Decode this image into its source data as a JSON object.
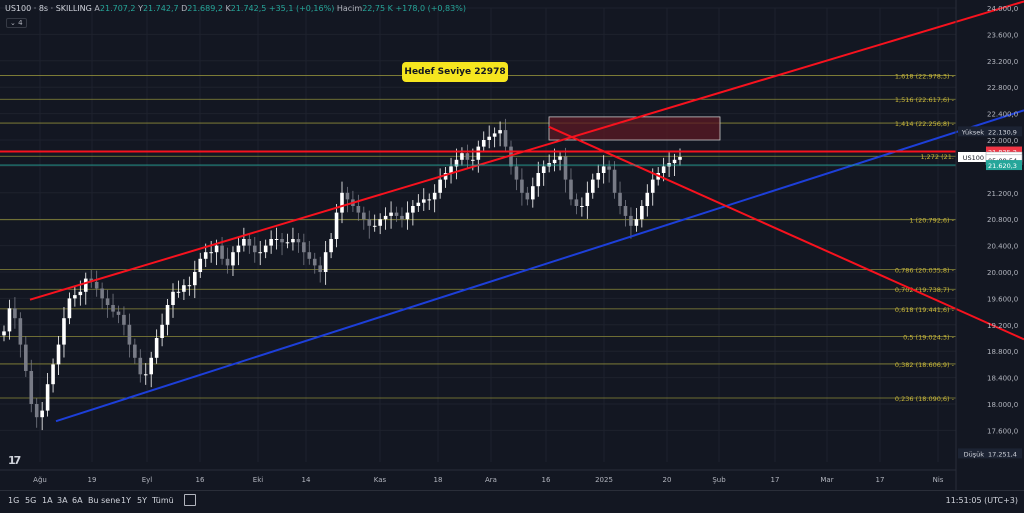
{
  "header": {
    "symbol": "US100 · 8s · SKILLING",
    "open_label": "A",
    "open": "21.707,2",
    "high_label": "Y",
    "high": "21.742,7",
    "low_label": "D",
    "low": "21.689,2",
    "close_label": "K",
    "close": "21.742,5",
    "change": "+35,1 (+0,16%)",
    "volume_label": "Hacim",
    "volume": "22,75 K",
    "volume_change": "+178,0 (+0,83%)",
    "collapse_count": "4"
  },
  "target_label": "Hedef Seviye 22978",
  "colors": {
    "background": "#131722",
    "channel_red": "#f7121e",
    "channel_blue": "#1d3fd9",
    "fib": "#8c8a3a",
    "up": "#ffffff",
    "down": "#787b86",
    "zone": "#5c1a24",
    "last_price": "#f23645",
    "green_price": "#26a69a"
  },
  "chart_data": {
    "type": "candlestick",
    "symbol": "US100",
    "timeframe": "8s",
    "ylim": [
      17251.4,
      24000
    ],
    "price_axis_ticks": [
      "24.000,0",
      "23.600,0",
      "23.200,0",
      "22.800,0",
      "22.400,0",
      "22.000,0",
      "21.200,0",
      "20.800,0",
      "20.400,0",
      "20.000,0",
      "19.600,0",
      "19.200,0",
      "18.800,0",
      "18.400,0",
      "18.000,0",
      "17.600,0"
    ],
    "time_axis_ticks": [
      "Ağu",
      "19",
      "Eyl",
      "16",
      "Eki",
      "14",
      "Kas",
      "18",
      "Ara",
      "16",
      "2025",
      "20",
      "Şub",
      "17",
      "Mar",
      "17",
      "Nis"
    ],
    "fibonacci_levels": [
      {
        "ratio": "1,618",
        "value": 22978.3,
        "label": "1,618 (22.978,3)"
      },
      {
        "ratio": "1,516",
        "value": 22617.6,
        "label": "1,516 (22.617,6)"
      },
      {
        "ratio": "1,414",
        "value": 22256.8,
        "label": "1,414 (22.256,8)"
      },
      {
        "ratio": "1,272",
        "value": 21754.0,
        "label": "1,272 (21."
      },
      {
        "ratio": "1",
        "value": 20792.6,
        "label": "1 (20.792,6)"
      },
      {
        "ratio": "0,786",
        "value": 20035.8,
        "label": "0,786 (20.035,8)"
      },
      {
        "ratio": "0,702",
        "value": 19738.7,
        "label": "0,702 (19.738,7)"
      },
      {
        "ratio": "0,618",
        "value": 19441.6,
        "label": "0,618 (19.441,6)"
      },
      {
        "ratio": "0,5",
        "value": 19024.3,
        "label": "0,5 (19.024,3)"
      },
      {
        "ratio": "0,382",
        "value": 18606.9,
        "label": "0,382 (18.606,9)"
      },
      {
        "ratio": "0,236",
        "value": 18090.6,
        "label": "0,236 (18.090,6)"
      }
    ],
    "price_labels": [
      {
        "text": "Yüksek",
        "value": "22.130,9",
        "price": 22130.9,
        "style": "navy"
      },
      {
        "text": "",
        "value": "21.825,2",
        "price": 21825.2,
        "style": "red"
      },
      {
        "text": "US100",
        "value": "21.742,5",
        "price": 21742.5,
        "style": "white"
      },
      {
        "text": "",
        "value": "05:08:54",
        "price": 21700,
        "style": "white-sub"
      },
      {
        "text": "",
        "value": "21.620,3",
        "price": 21620.3,
        "style": "green"
      },
      {
        "text": "Düşük",
        "value": "17.251,4",
        "price": 17251.4,
        "style": "navy"
      }
    ],
    "trendlines": [
      {
        "name": "channel-top",
        "color": "red",
        "from": [
          "Ağu",
          19580
        ],
        "to": [
          "Nis+",
          24000
        ]
      },
      {
        "name": "channel-bottom",
        "color": "blue",
        "from": [
          "Ağu",
          17740
        ],
        "to": [
          "Nis+",
          22450
        ]
      },
      {
        "name": "descending",
        "color": "red",
        "from": [
          "Ara 16",
          22200
        ],
        "to": [
          "Nis+",
          19000
        ]
      },
      {
        "name": "resistance",
        "color": "red",
        "value": 21825.2
      }
    ],
    "zone": {
      "from": "Ara 16",
      "to": "2025",
      "low": 22000,
      "high": 22350
    },
    "closes": [
      19100,
      19450,
      19300,
      18900,
      18500,
      18000,
      17800,
      17900,
      18300,
      18600,
      18900,
      19300,
      19600,
      19650,
      19700,
      19900,
      19850,
      19750,
      19600,
      19500,
      19400,
      19350,
      19200,
      18900,
      18700,
      18450,
      18450,
      18700,
      19000,
      19200,
      19500,
      19700,
      19700,
      19800,
      19800,
      20000,
      20200,
      20300,
      20300,
      20400,
      20200,
      20100,
      20300,
      20400,
      20500,
      20400,
      20300,
      20300,
      20400,
      20500,
      20500,
      20450,
      20450,
      20500,
      20450,
      20300,
      20200,
      20100,
      20000,
      20300,
      20500,
      20900,
      21200,
      21100,
      21000,
      20900,
      20800,
      20700,
      20700,
      20800,
      20850,
      20900,
      20850,
      20800,
      20900,
      21000,
      21050,
      21100,
      21100,
      21200,
      21400,
      21500,
      21600,
      21700,
      21800,
      21700,
      21700,
      21900,
      22000,
      22050,
      22100,
      22150,
      21900,
      21600,
      21400,
      21200,
      21100,
      21300,
      21500,
      21600,
      21650,
      21700,
      21750,
      21400,
      21100,
      21000,
      21000,
      21200,
      21400,
      21500,
      21600,
      21550,
      21200,
      21000,
      20850,
      20700,
      20800,
      21000,
      21200,
      21400,
      21500,
      21600,
      21650,
      21700,
      21742
    ]
  },
  "bottom_bar": {
    "ranges": [
      "1G",
      "5G",
      "1A",
      "3A",
      "6A",
      "Bu sene",
      "1Y",
      "5Y",
      "Tümü"
    ],
    "clock": "11:51:05 (UTC+3)"
  }
}
